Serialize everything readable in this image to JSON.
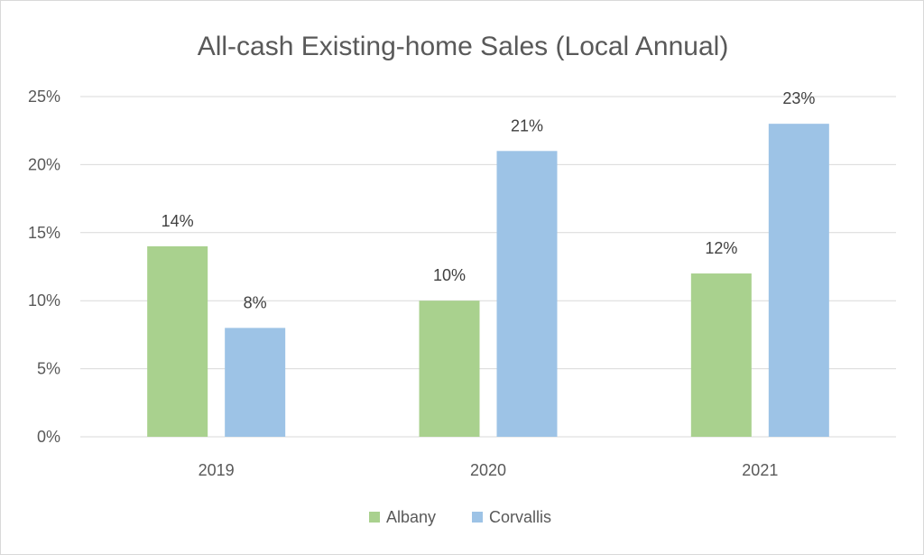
{
  "chart_data": {
    "type": "bar",
    "title": "All-cash Existing-home Sales (Local Annual)",
    "xlabel": "",
    "ylabel": "",
    "categories": [
      "2019",
      "2020",
      "2021"
    ],
    "series": [
      {
        "name": "Albany",
        "values": [
          14,
          10,
          12
        ],
        "color": "#a9d18e"
      },
      {
        "name": "Corvallis",
        "values": [
          8,
          21,
          23
        ],
        "color": "#9dc3e6"
      }
    ],
    "ylim": [
      0,
      25
    ],
    "yticks": [
      0,
      5,
      10,
      15,
      20,
      25
    ],
    "ytick_labels": [
      "0%",
      "5%",
      "10%",
      "15%",
      "20%",
      "25%"
    ],
    "value_suffix": "%",
    "grid": true,
    "gridline_color": "#d9d9d9",
    "legend_position": "bottom"
  }
}
